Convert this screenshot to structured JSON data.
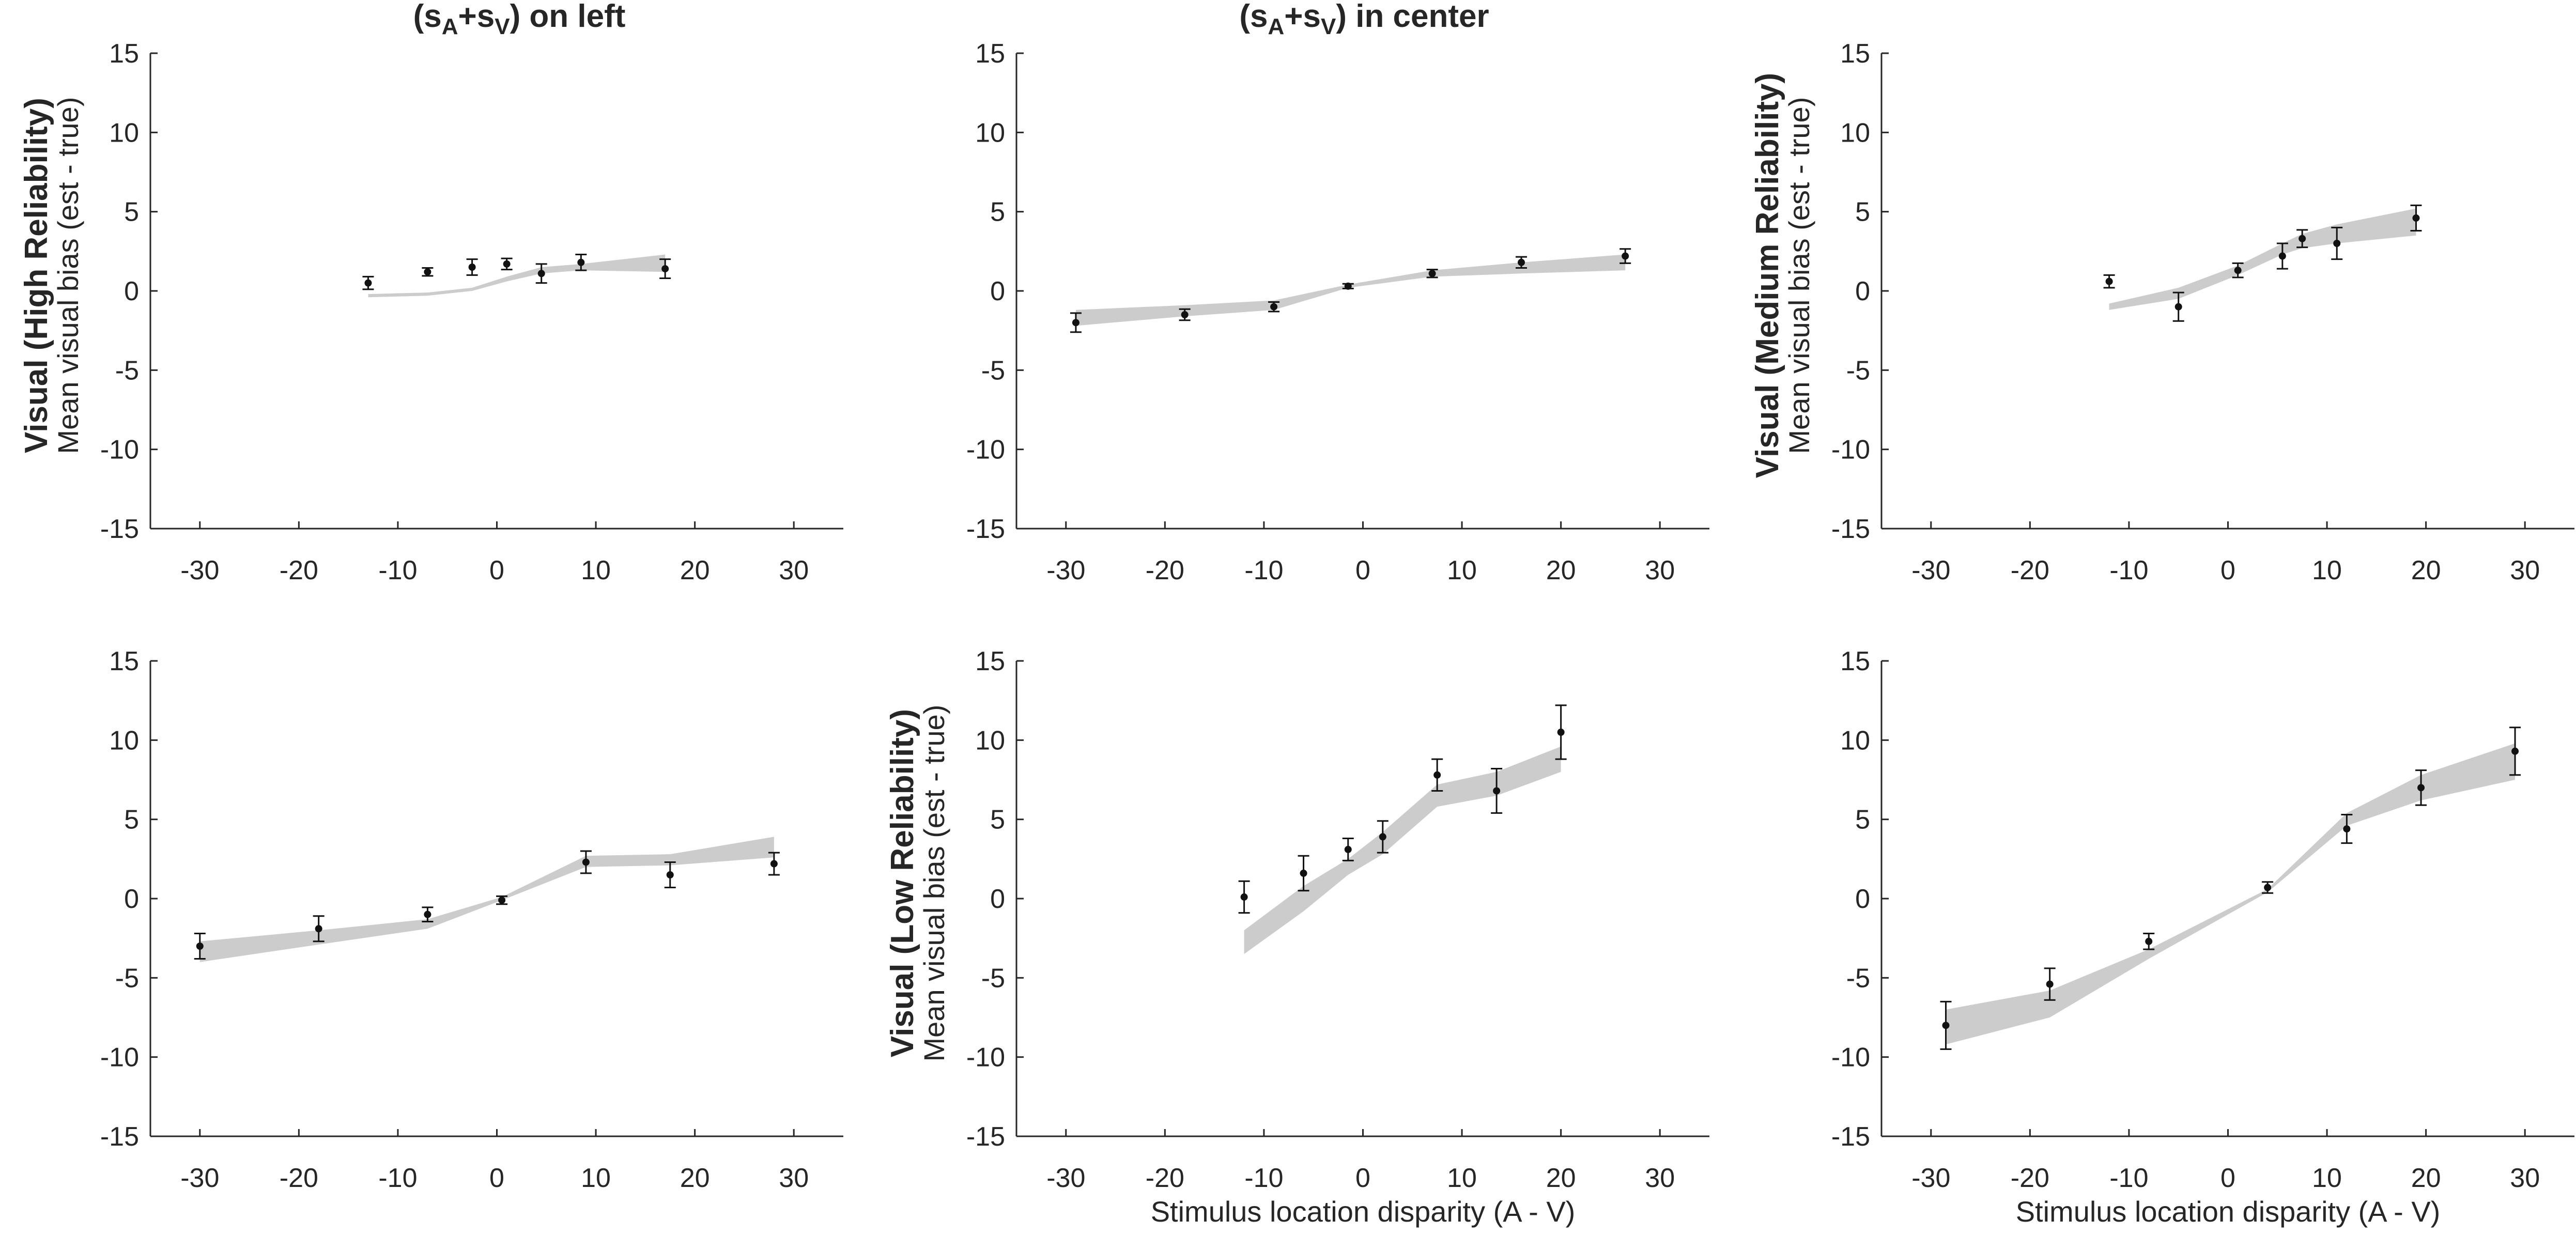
{
  "column_titles": [
    {
      "pre": "(s",
      "sub1": "A",
      "mid": "+s",
      "sub2": "V",
      "post": ") on left"
    },
    {
      "pre": "(s",
      "sub1": "A",
      "mid": "+s",
      "sub2": "V",
      "post": ") in center"
    }
  ],
  "chart_data": [
    {
      "type": "line",
      "panel": "row1-col1",
      "ylabel_bold": "Visual (High Reliability)",
      "ylabel": "Mean visual bias (est - true)",
      "xlabel": "",
      "xlim": [
        -35,
        35
      ],
      "ylim": [
        -15,
        15
      ],
      "xticks": [
        -30,
        -20,
        -10,
        0,
        10,
        20,
        30
      ],
      "yticks": [
        -15,
        -10,
        -5,
        0,
        5,
        10,
        15
      ],
      "band": {
        "x": [
          -13,
          -7,
          -2.5,
          1,
          4.5,
          8.5,
          17
        ],
        "lo": [
          -0.4,
          -0.3,
          0.0,
          0.6,
          1.1,
          1.3,
          1.2
        ],
        "hi": [
          -0.2,
          -0.1,
          0.2,
          0.9,
          1.5,
          1.7,
          2.3
        ]
      },
      "points": {
        "x": [
          -13,
          -7,
          -2.5,
          1,
          4.5,
          8.5,
          17
        ],
        "y": [
          0.5,
          1.2,
          1.5,
          1.7,
          1.1,
          1.8,
          1.4
        ],
        "err": [
          0.4,
          0.25,
          0.5,
          0.35,
          0.6,
          0.5,
          0.6
        ]
      }
    },
    {
      "type": "line",
      "panel": "row1-col2",
      "ylabel_bold": "",
      "ylabel": "",
      "xlabel": "",
      "xlim": [
        -35,
        35
      ],
      "ylim": [
        -15,
        15
      ],
      "xticks": [
        -30,
        -20,
        -10,
        0,
        10,
        20,
        30
      ],
      "yticks": [
        -15,
        -10,
        -5,
        0,
        5,
        10,
        15
      ],
      "band": {
        "x": [
          -29,
          -18,
          -9,
          -1.5,
          7,
          16,
          26.5
        ],
        "lo": [
          -2.2,
          -1.6,
          -1.2,
          0.2,
          0.9,
          1.1,
          1.3
        ],
        "hi": [
          -1.2,
          -0.9,
          -0.6,
          0.4,
          1.3,
          1.8,
          2.3
        ]
      },
      "points": {
        "x": [
          -29,
          -18,
          -9,
          -1.5,
          7,
          16,
          26.5
        ],
        "y": [
          -2.0,
          -1.5,
          -1.0,
          0.3,
          1.1,
          1.8,
          2.2
        ],
        "err": [
          0.6,
          0.35,
          0.3,
          0.15,
          0.25,
          0.35,
          0.45
        ]
      }
    },
    {
      "type": "line",
      "panel": "row1-col3",
      "ylabel_bold": "Visual (Medium Reliability)",
      "ylabel": "Mean visual bias (est - true)",
      "xlabel": "",
      "xlim": [
        -35,
        35
      ],
      "ylim": [
        -15,
        15
      ],
      "xticks": [
        -30,
        -20,
        -10,
        0,
        10,
        20,
        30
      ],
      "yticks": [
        -15,
        -10,
        -5,
        0,
        5,
        10,
        15
      ],
      "band": {
        "x": [
          -12,
          -5,
          1,
          5.5,
          7.5,
          11,
          19
        ],
        "lo": [
          -1.2,
          -0.5,
          1.0,
          2.3,
          2.7,
          3.0,
          3.5
        ],
        "hi": [
          -0.8,
          0.2,
          1.6,
          3.0,
          3.6,
          4.2,
          5.2
        ]
      },
      "points": {
        "x": [
          -12,
          -5,
          1,
          5.5,
          7.5,
          11,
          19
        ],
        "y": [
          0.6,
          -1.0,
          1.3,
          2.2,
          3.3,
          3.0,
          4.6
        ],
        "err": [
          0.4,
          0.9,
          0.45,
          0.8,
          0.55,
          1.0,
          0.8
        ]
      }
    },
    {
      "type": "line",
      "panel": "row2-col1",
      "ylabel_bold": "",
      "ylabel": "",
      "xlabel": "",
      "xlim": [
        -35,
        35
      ],
      "ylim": [
        -15,
        15
      ],
      "xticks": [
        -30,
        -20,
        -10,
        0,
        10,
        20,
        30
      ],
      "yticks": [
        -15,
        -10,
        -5,
        0,
        5,
        10,
        15
      ],
      "band": {
        "x": [
          -30,
          -18,
          -7,
          0.5,
          9,
          17.5,
          28
        ],
        "lo": [
          -4.0,
          -2.9,
          -1.9,
          -0.1,
          2.0,
          2.1,
          2.6
        ],
        "hi": [
          -2.7,
          -2.0,
          -1.3,
          0.1,
          2.7,
          2.8,
          3.9
        ]
      },
      "points": {
        "x": [
          -30,
          -18,
          -7,
          0.5,
          9,
          17.5,
          28
        ],
        "y": [
          -3.0,
          -1.9,
          -1.0,
          -0.1,
          2.3,
          1.5,
          2.2
        ],
        "err": [
          0.8,
          0.8,
          0.45,
          0.25,
          0.7,
          0.8,
          0.7
        ]
      }
    },
    {
      "type": "line",
      "panel": "row2-col2",
      "ylabel_bold": "Visual (Low Reliability)",
      "ylabel": "Mean visual bias (est - true)",
      "xlabel": "Stimulus location disparity (A - V)",
      "xlim": [
        -35,
        35
      ],
      "ylim": [
        -15,
        15
      ],
      "xticks": [
        -30,
        -20,
        -10,
        0,
        10,
        20,
        30
      ],
      "yticks": [
        -15,
        -10,
        -5,
        0,
        5,
        10,
        15
      ],
      "band": {
        "x": [
          -12,
          -6,
          -1.5,
          2,
          7.5,
          13.5,
          20
        ],
        "lo": [
          -3.5,
          -0.8,
          1.5,
          2.8,
          5.8,
          6.5,
          8.0
        ],
        "hi": [
          -2.0,
          0.8,
          2.5,
          4.2,
          7.2,
          8.0,
          9.6
        ]
      },
      "points": {
        "x": [
          -12,
          -6,
          -1.5,
          2,
          7.5,
          13.5,
          20
        ],
        "y": [
          0.1,
          1.6,
          3.1,
          3.9,
          7.8,
          6.8,
          10.5
        ],
        "err": [
          1.0,
          1.1,
          0.7,
          1.0,
          1.0,
          1.4,
          1.7
        ]
      }
    },
    {
      "type": "line",
      "panel": "row2-col3",
      "ylabel_bold": "",
      "ylabel": "",
      "xlabel": "Stimulus location disparity (A - V)",
      "xlim": [
        -35,
        35
      ],
      "ylim": [
        -15,
        15
      ],
      "xticks": [
        -30,
        -20,
        -10,
        0,
        10,
        20,
        30
      ],
      "yticks": [
        -15,
        -10,
        -5,
        0,
        5,
        10,
        15
      ],
      "band": {
        "x": [
          -28.5,
          -18,
          -8,
          4,
          12,
          19.5,
          29
        ],
        "lo": [
          -9.2,
          -7.5,
          -3.8,
          0.4,
          4.6,
          6.2,
          7.5
        ],
        "hi": [
          -7.0,
          -5.8,
          -3.2,
          0.6,
          5.4,
          7.8,
          9.8
        ]
      },
      "points": {
        "x": [
          -28.5,
          -18,
          -8,
          4,
          12,
          19.5,
          29
        ],
        "y": [
          -8.0,
          -5.4,
          -2.7,
          0.7,
          4.4,
          7.0,
          9.3
        ],
        "err": [
          1.5,
          1.0,
          0.5,
          0.35,
          0.9,
          1.1,
          1.5
        ]
      }
    }
  ]
}
